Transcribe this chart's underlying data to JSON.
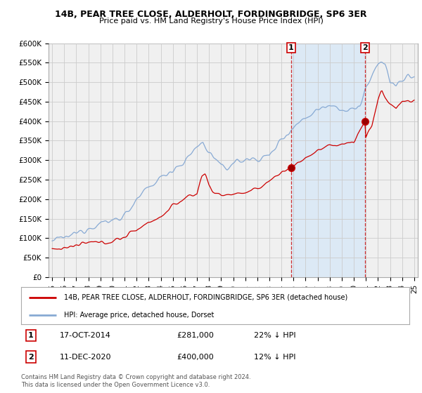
{
  "title1": "14B, PEAR TREE CLOSE, ALDERHOLT, FORDINGBRIDGE, SP6 3ER",
  "title2": "Price paid vs. HM Land Registry's House Price Index (HPI)",
  "legend_label_red": "14B, PEAR TREE CLOSE, ALDERHOLT, FORDINGBRIDGE, SP6 3ER (detached house)",
  "legend_label_blue": "HPI: Average price, detached house, Dorset",
  "annotation1_label": "1",
  "annotation1_date": "17-OCT-2014",
  "annotation1_price": "£281,000",
  "annotation1_hpi": "22% ↓ HPI",
  "annotation1_year": 2014.8,
  "annotation1_value": 281000,
  "annotation2_label": "2",
  "annotation2_date": "11-DEC-2020",
  "annotation2_price": "£400,000",
  "annotation2_hpi": "12% ↓ HPI",
  "annotation2_year": 2020.95,
  "annotation2_value": 400000,
  "copyright_text": "Contains HM Land Registry data © Crown copyright and database right 2024.\nThis data is licensed under the Open Government Licence v3.0.",
  "ylim": [
    0,
    600000
  ],
  "xlim": [
    1994.7,
    2025.3
  ],
  "yticks": [
    0,
    50000,
    100000,
    150000,
    200000,
    250000,
    300000,
    350000,
    400000,
    450000,
    500000,
    550000,
    600000
  ],
  "ytick_labels": [
    "£0",
    "£50K",
    "£100K",
    "£150K",
    "£200K",
    "£250K",
    "£300K",
    "£350K",
    "£400K",
    "£450K",
    "£500K",
    "£550K",
    "£600K"
  ],
  "xticks": [
    1995,
    1996,
    1997,
    1998,
    1999,
    2000,
    2001,
    2002,
    2003,
    2004,
    2005,
    2006,
    2007,
    2008,
    2009,
    2010,
    2011,
    2012,
    2013,
    2014,
    2015,
    2016,
    2017,
    2018,
    2019,
    2020,
    2021,
    2022,
    2023,
    2024,
    2025
  ],
  "xtick_labels": [
    "95",
    "96",
    "97",
    "98",
    "99",
    "00",
    "01",
    "02",
    "03",
    "04",
    "05",
    "06",
    "07",
    "08",
    "09",
    "10",
    "11",
    "12",
    "13",
    "14",
    "15",
    "16",
    "17",
    "18",
    "19",
    "20",
    "21",
    "22",
    "23",
    "24",
    "25"
  ],
  "red_color": "#cc0000",
  "blue_color": "#88aad4",
  "shade_color": "#dce9f5",
  "grid_color": "#cccccc",
  "bg_color": "#ffffff",
  "plot_bg_color": "#f0f0f0"
}
